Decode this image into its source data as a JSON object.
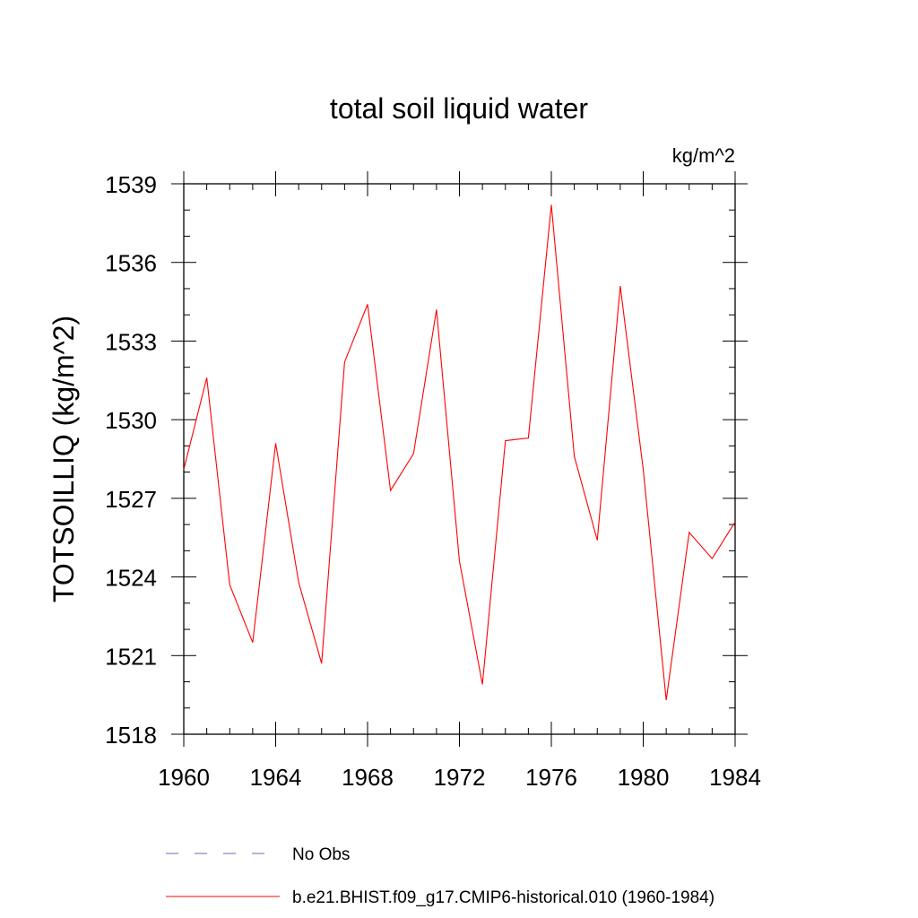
{
  "chart_data": {
    "type": "line",
    "title": "total soil liquid water",
    "units": "kg/m^2",
    "ylabel": "TOTSOILLIQ  (kg/m^2)",
    "xlabel": "",
    "xlim": [
      1960,
      1984
    ],
    "ylim": [
      1518,
      1539
    ],
    "x_ticks": [
      "1960",
      "1964",
      "1968",
      "1972",
      "1976",
      "1980",
      "1984"
    ],
    "y_ticks": [
      "1518",
      "1521",
      "1524",
      "1527",
      "1530",
      "1533",
      "1536",
      "1539"
    ],
    "x": [
      1960,
      1961,
      1962,
      1963,
      1964,
      1965,
      1966,
      1967,
      1968,
      1969,
      1970,
      1971,
      1972,
      1973,
      1974,
      1975,
      1976,
      1977,
      1978,
      1979,
      1980,
      1981,
      1982,
      1983,
      1984
    ],
    "series": [
      {
        "name": "b.e21.BHIST.f09_g17.CMIP6-historical.010 (1960-1984)",
        "color": "#ff0000",
        "dash": "solid",
        "values": [
          1528.1,
          1531.6,
          1523.7,
          1521.5,
          1529.1,
          1523.8,
          1520.7,
          1532.2,
          1534.4,
          1527.3,
          1528.7,
          1534.2,
          1524.6,
          1519.9,
          1529.2,
          1529.3,
          1538.2,
          1528.6,
          1525.4,
          1535.1,
          1528.1,
          1519.3,
          1525.7,
          1524.7,
          1526.1
        ]
      }
    ],
    "legend": [
      {
        "label": "No Obs",
        "color": "#6a6ab4",
        "dash": "dashed"
      },
      {
        "label": "b.e21.BHIST.f09_g17.CMIP6-historical.010 (1960-1984)",
        "color": "#ff0000",
        "dash": "solid"
      }
    ]
  }
}
